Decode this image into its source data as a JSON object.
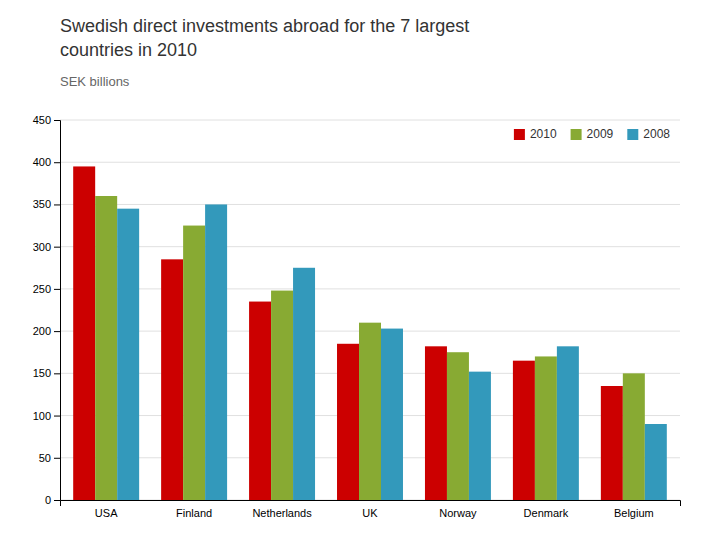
{
  "chart_data": {
    "type": "bar",
    "title": [
      "Swedish direct investments abroad for the 7 largest",
      "countries in 2010"
    ],
    "subtitle": "SEK billions",
    "categories": [
      "USA",
      "Finland",
      "Netherlands",
      "UK",
      "Norway",
      "Denmark",
      "Belgium"
    ],
    "series": [
      {
        "name": "2010",
        "color": "#cc0000",
        "values": [
          395,
          285,
          235,
          185,
          182,
          165,
          135
        ]
      },
      {
        "name": "2009",
        "color": "#88aa33",
        "values": [
          360,
          325,
          248,
          210,
          175,
          170,
          150
        ]
      },
      {
        "name": "2008",
        "color": "#3399bb",
        "values": [
          345,
          350,
          275,
          203,
          152,
          182,
          90
        ]
      }
    ],
    "ylim": [
      0,
      450
    ],
    "yticks": [
      0,
      50,
      100,
      150,
      200,
      250,
      300,
      350,
      400,
      450
    ],
    "grid": true,
    "legend": "upper right"
  }
}
